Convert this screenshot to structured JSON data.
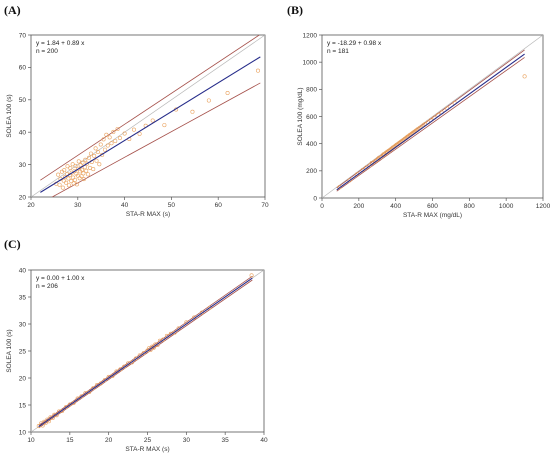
{
  "chart_data": [
    {
      "type": "scatter",
      "panel": "(A)",
      "xlabel": "STA-R MAX (s)",
      "ylabel": "SOLEA 100 (s)",
      "xlim": [
        20,
        70
      ],
      "ylim": [
        20,
        70
      ],
      "xticks": [
        20,
        30,
        40,
        50,
        60,
        70
      ],
      "yticks": [
        20,
        30,
        40,
        50,
        60,
        70
      ],
      "equation": "y = 1.84  +  0.89  x",
      "n_label": "n = 200",
      "identity_line": true,
      "fit": {
        "intercept": 1.84,
        "slope": 0.89,
        "x_range": [
          22,
          69
        ]
      },
      "ci": {
        "upper": [
          [
            22,
            25.2
          ],
          [
            69,
            70.2
          ]
        ],
        "lower": [
          [
            22,
            18.0
          ],
          [
            69,
            55.2
          ]
        ]
      },
      "points": [
        [
          25.4,
          24.1
        ],
        [
          25.8,
          26.9
        ],
        [
          26.1,
          23.8
        ],
        [
          26.3,
          25.6
        ],
        [
          26.6,
          27.8
        ],
        [
          26.8,
          22.9
        ],
        [
          27.0,
          25.0
        ],
        [
          27.1,
          28.3
        ],
        [
          27.3,
          26.2
        ],
        [
          27.5,
          24.4
        ],
        [
          27.7,
          27.1
        ],
        [
          27.8,
          29.5
        ],
        [
          28.0,
          25.7
        ],
        [
          28.1,
          23.6
        ],
        [
          28.3,
          26.8
        ],
        [
          28.4,
          28.9
        ],
        [
          28.6,
          24.9
        ],
        [
          28.7,
          27.5
        ],
        [
          28.9,
          30.1
        ],
        [
          29.0,
          26.0
        ],
        [
          29.1,
          24.2
        ],
        [
          29.3,
          28.0
        ],
        [
          29.4,
          25.3
        ],
        [
          29.5,
          29.6
        ],
        [
          29.7,
          27.2
        ],
        [
          29.8,
          23.9
        ],
        [
          30.0,
          26.6
        ],
        [
          30.1,
          28.7
        ],
        [
          30.2,
          31.0
        ],
        [
          30.4,
          25.8
        ],
        [
          30.5,
          27.9
        ],
        [
          30.6,
          29.9
        ],
        [
          30.8,
          26.4
        ],
        [
          30.9,
          28.4
        ],
        [
          31.0,
          30.6
        ],
        [
          31.2,
          27.3
        ],
        [
          31.3,
          25.5
        ],
        [
          31.5,
          29.2
        ],
        [
          31.6,
          31.5
        ],
        [
          31.8,
          28.1
        ],
        [
          32.0,
          30.3
        ],
        [
          32.2,
          27.0
        ],
        [
          32.4,
          32.1
        ],
        [
          32.6,
          29.0
        ],
        [
          32.8,
          33.4
        ],
        [
          33.0,
          30.8
        ],
        [
          33.3,
          28.6
        ],
        [
          33.5,
          32.7
        ],
        [
          33.8,
          35.0
        ],
        [
          34.0,
          31.2
        ],
        [
          34.3,
          33.9
        ],
        [
          34.6,
          30.1
        ],
        [
          34.9,
          36.2
        ],
        [
          35.2,
          33.0
        ],
        [
          35.5,
          37.8
        ],
        [
          35.8,
          34.6
        ],
        [
          36.1,
          39.2
        ],
        [
          36.4,
          35.9
        ],
        [
          36.8,
          38.4
        ],
        [
          37.2,
          36.6
        ],
        [
          37.6,
          40.1
        ],
        [
          38.0,
          37.3
        ],
        [
          38.5,
          41.0
        ],
        [
          39.0,
          38.2
        ],
        [
          40.0,
          39.6
        ],
        [
          41.0,
          37.9
        ],
        [
          42.0,
          40.8
        ],
        [
          43.2,
          39.5
        ],
        [
          44.5,
          42.0
        ],
        [
          46.0,
          43.6
        ],
        [
          48.5,
          42.2
        ],
        [
          51.0,
          47.0
        ],
        [
          54.5,
          46.3
        ],
        [
          58.0,
          49.8
        ],
        [
          62.0,
          52.1
        ],
        [
          68.5,
          59.0
        ]
      ]
    },
    {
      "type": "scatter",
      "panel": "(B)",
      "xlabel": "STA-R MAX (mg/dL)",
      "ylabel": "SOLEA 100 (mg/dL)",
      "xlim": [
        0,
        1200
      ],
      "ylim": [
        0,
        1200
      ],
      "xticks": [
        0,
        200,
        400,
        600,
        800,
        1000,
        1200
      ],
      "yticks": [
        0,
        200,
        400,
        600,
        800,
        1000,
        1200
      ],
      "equation": "y = -18.29  +  0.98  x",
      "n_label": "n = 181",
      "identity_line": true,
      "fit": {
        "intercept": -18.29,
        "slope": 0.98,
        "x_range": [
          80,
          1100
        ]
      },
      "ci": {
        "upper": [
          [
            80,
            75
          ],
          [
            1100,
            1090
          ]
        ],
        "lower": [
          [
            80,
            50
          ],
          [
            1100,
            1035
          ]
        ]
      },
      "points": [
        [
          95,
          80
        ],
        [
          150,
          130
        ],
        [
          190,
          175
        ],
        [
          220,
          205
        ],
        [
          240,
          225
        ],
        [
          260,
          240
        ],
        [
          270,
          258
        ],
        [
          280,
          262
        ],
        [
          290,
          272
        ],
        [
          300,
          282
        ],
        [
          305,
          290
        ],
        [
          310,
          296
        ],
        [
          320,
          300
        ],
        [
          330,
          315
        ],
        [
          335,
          322
        ],
        [
          340,
          320
        ],
        [
          345,
          330
        ],
        [
          350,
          336
        ],
        [
          355,
          340
        ],
        [
          360,
          345
        ],
        [
          365,
          350
        ],
        [
          370,
          352
        ],
        [
          375,
          360
        ],
        [
          380,
          364
        ],
        [
          385,
          372
        ],
        [
          390,
          375
        ],
        [
          395,
          380
        ],
        [
          400,
          386
        ],
        [
          405,
          392
        ],
        [
          410,
          395
        ],
        [
          415,
          400
        ],
        [
          420,
          406
        ],
        [
          425,
          410
        ],
        [
          430,
          416
        ],
        [
          435,
          420
        ],
        [
          440,
          425
        ],
        [
          445,
          430
        ],
        [
          450,
          436
        ],
        [
          455,
          440
        ],
        [
          460,
          446
        ],
        [
          465,
          452
        ],
        [
          470,
          455
        ],
        [
          475,
          462
        ],
        [
          480,
          466
        ],
        [
          485,
          470
        ],
        [
          490,
          476
        ],
        [
          495,
          480
        ],
        [
          500,
          486
        ],
        [
          505,
          490
        ],
        [
          510,
          496
        ],
        [
          515,
          500
        ],
        [
          520,
          506
        ],
        [
          530,
          515
        ],
        [
          540,
          525
        ],
        [
          550,
          536
        ],
        [
          560,
          545
        ],
        [
          575,
          558
        ],
        [
          590,
          572
        ],
        [
          610,
          592
        ],
        [
          630,
          612
        ],
        [
          650,
          630
        ],
        [
          680,
          660
        ],
        [
          720,
          700
        ],
        [
          1100,
          895
        ]
      ]
    },
    {
      "type": "scatter",
      "panel": "(C)",
      "xlabel": "STA-R MAX (s)",
      "ylabel": "SOLEA 100 (s)",
      "xlim": [
        10,
        40
      ],
      "ylim": [
        10,
        40
      ],
      "xticks": [
        10,
        15,
        20,
        25,
        30,
        35,
        40
      ],
      "yticks": [
        10,
        15,
        20,
        25,
        30,
        35,
        40
      ],
      "equation": "y = 0.00  +  1.00  x",
      "n_label": "n = 206",
      "identity_line": true,
      "fit": {
        "intercept": 0.0,
        "slope": 1.0,
        "x_range": [
          11,
          38.5
        ]
      },
      "ci": {
        "upper": [
          [
            11,
            11.25
          ],
          [
            38.5,
            38.85
          ]
        ],
        "lower": [
          [
            11,
            10.75
          ],
          [
            38.5,
            38.15
          ]
        ]
      },
      "points": [
        [
          11.0,
          11.1
        ],
        [
          11.3,
          11.6
        ],
        [
          11.5,
          11.2
        ],
        [
          11.7,
          11.9
        ],
        [
          11.9,
          11.7
        ],
        [
          12.1,
          12.3
        ],
        [
          12.3,
          12.0
        ],
        [
          12.5,
          12.7
        ],
        [
          12.8,
          12.6
        ],
        [
          13.0,
          13.2
        ],
        [
          13.3,
          13.1
        ],
        [
          13.6,
          13.8
        ],
        [
          14.0,
          13.9
        ],
        [
          14.5,
          14.6
        ],
        [
          15.0,
          15.1
        ],
        [
          15.5,
          15.4
        ],
        [
          16.0,
          16.2
        ],
        [
          16.5,
          16.6
        ],
        [
          17.0,
          17.2
        ],
        [
          17.5,
          17.4
        ],
        [
          18.0,
          18.1
        ],
        [
          18.5,
          18.7
        ],
        [
          19.0,
          19.0
        ],
        [
          19.5,
          19.6
        ],
        [
          20.0,
          20.2
        ],
        [
          20.5,
          20.4
        ],
        [
          21.0,
          21.2
        ],
        [
          21.5,
          21.6
        ],
        [
          22.0,
          22.1
        ],
        [
          22.5,
          22.7
        ],
        [
          23.0,
          22.9
        ],
        [
          23.5,
          23.6
        ],
        [
          24.0,
          24.2
        ],
        [
          24.5,
          24.6
        ],
        [
          25.0,
          25.1
        ],
        [
          25.2,
          25.5
        ],
        [
          25.4,
          25.2
        ],
        [
          25.6,
          25.8
        ],
        [
          25.8,
          25.6
        ],
        [
          26.0,
          26.2
        ],
        [
          26.3,
          26.1
        ],
        [
          26.6,
          26.9
        ],
        [
          27.0,
          27.1
        ],
        [
          27.5,
          27.8
        ],
        [
          28.0,
          28.2
        ],
        [
          28.5,
          28.4
        ],
        [
          29.0,
          29.2
        ],
        [
          30.0,
          30.3
        ],
        [
          31.0,
          31.2
        ],
        [
          32.0,
          32.1
        ],
        [
          33.0,
          33.0
        ],
        [
          38.4,
          39.0
        ]
      ]
    }
  ]
}
